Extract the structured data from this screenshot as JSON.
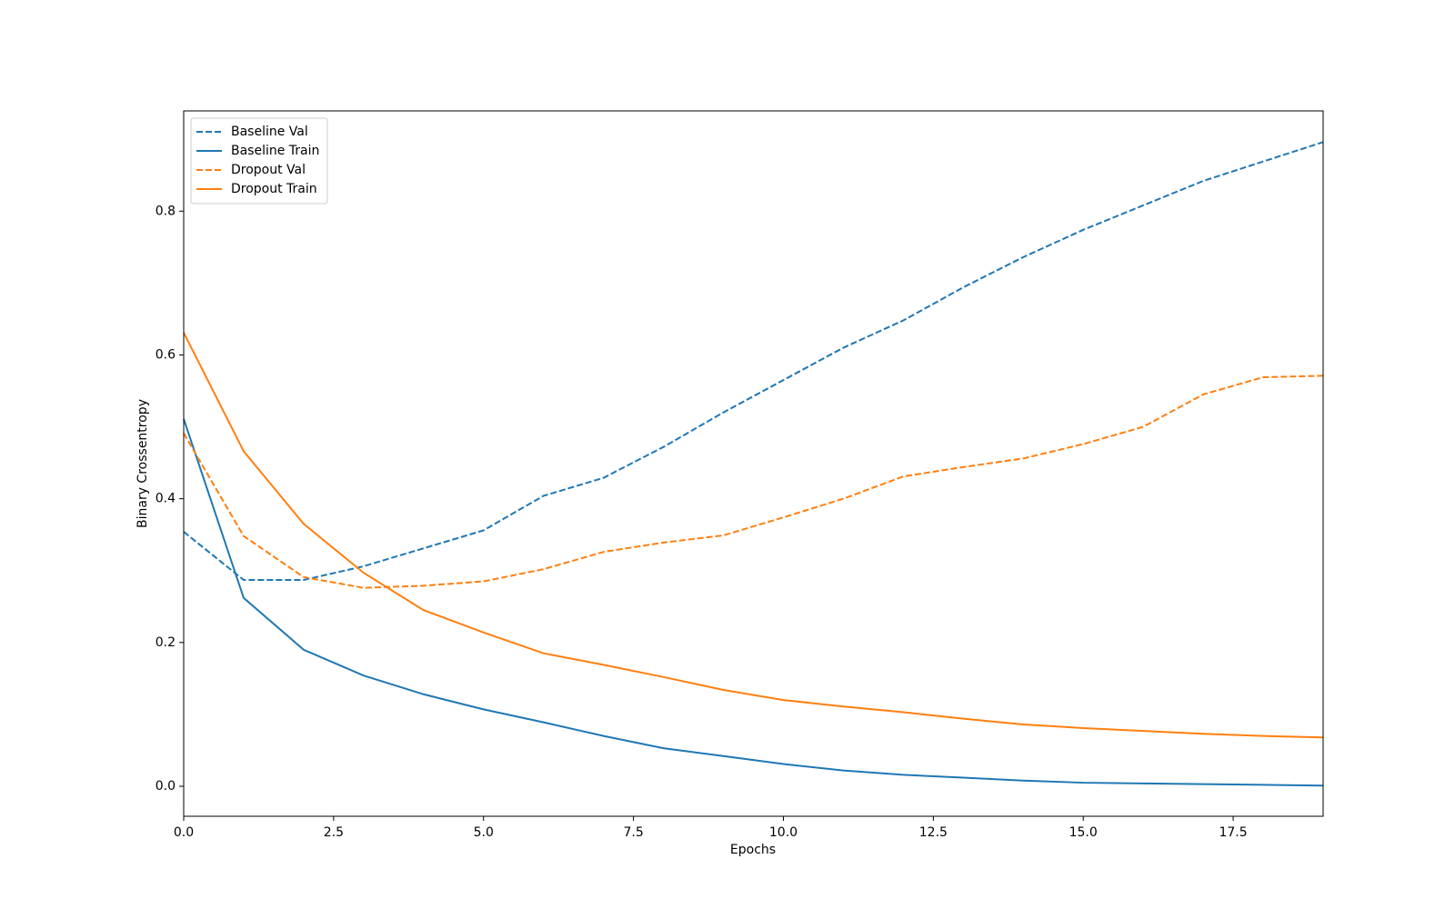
{
  "chart_data": {
    "type": "line",
    "xlabel": "Epochs",
    "ylabel": "Binary Crossentropy",
    "x": [
      0,
      1,
      2,
      3,
      4,
      5,
      6,
      7,
      8,
      9,
      10,
      11,
      12,
      13,
      14,
      15,
      16,
      17,
      18,
      19
    ],
    "series": [
      {
        "name": "Baseline Val",
        "color": "#1f77b4",
        "linestyle": "dashed",
        "values": [
          0.354,
          0.287,
          0.287,
          0.306,
          0.331,
          0.356,
          0.404,
          0.429,
          0.472,
          0.52,
          0.565,
          0.61,
          0.648,
          0.694,
          0.736,
          0.774,
          0.808,
          0.842,
          0.869,
          0.896
        ]
      },
      {
        "name": "Baseline Train",
        "color": "#1f77b4",
        "linestyle": "solid",
        "values": [
          0.511,
          0.262,
          0.19,
          0.154,
          0.128,
          0.107,
          0.089,
          0.07,
          0.053,
          0.042,
          0.031,
          0.022,
          0.016,
          0.012,
          0.008,
          0.005,
          0.004,
          0.003,
          0.002,
          0.001
        ]
      },
      {
        "name": "Dropout Val",
        "color": "#ff7f0e",
        "linestyle": "dashed",
        "values": [
          0.491,
          0.348,
          0.291,
          0.276,
          0.279,
          0.285,
          0.302,
          0.326,
          0.339,
          0.349,
          0.374,
          0.4,
          0.431,
          0.444,
          0.456,
          0.476,
          0.5,
          0.545,
          0.569,
          0.571
        ]
      },
      {
        "name": "Dropout Train",
        "color": "#ff7f0e",
        "linestyle": "solid",
        "values": [
          0.631,
          0.466,
          0.365,
          0.297,
          0.245,
          0.214,
          0.185,
          0.169,
          0.152,
          0.134,
          0.12,
          0.111,
          0.103,
          0.094,
          0.086,
          0.081,
          0.077,
          0.073,
          0.07,
          0.068
        ]
      }
    ],
    "xlim": [
      0,
      19
    ],
    "xticks": [
      {
        "value": 0,
        "label": "0.0"
      },
      2.5,
      {
        "value": 5,
        "label": "5.0"
      },
      7.5,
      {
        "value": 10,
        "label": "10.0"
      },
      12.5,
      {
        "value": 15,
        "label": "15.0"
      },
      17.5
    ],
    "ylim": [
      -0.0417,
      0.9394
    ],
    "yticks": [
      {
        "value": 0,
        "label": "0.0"
      },
      0.2,
      0.4,
      0.6,
      0.8
    ],
    "grid": false,
    "legend": "upper left"
  }
}
